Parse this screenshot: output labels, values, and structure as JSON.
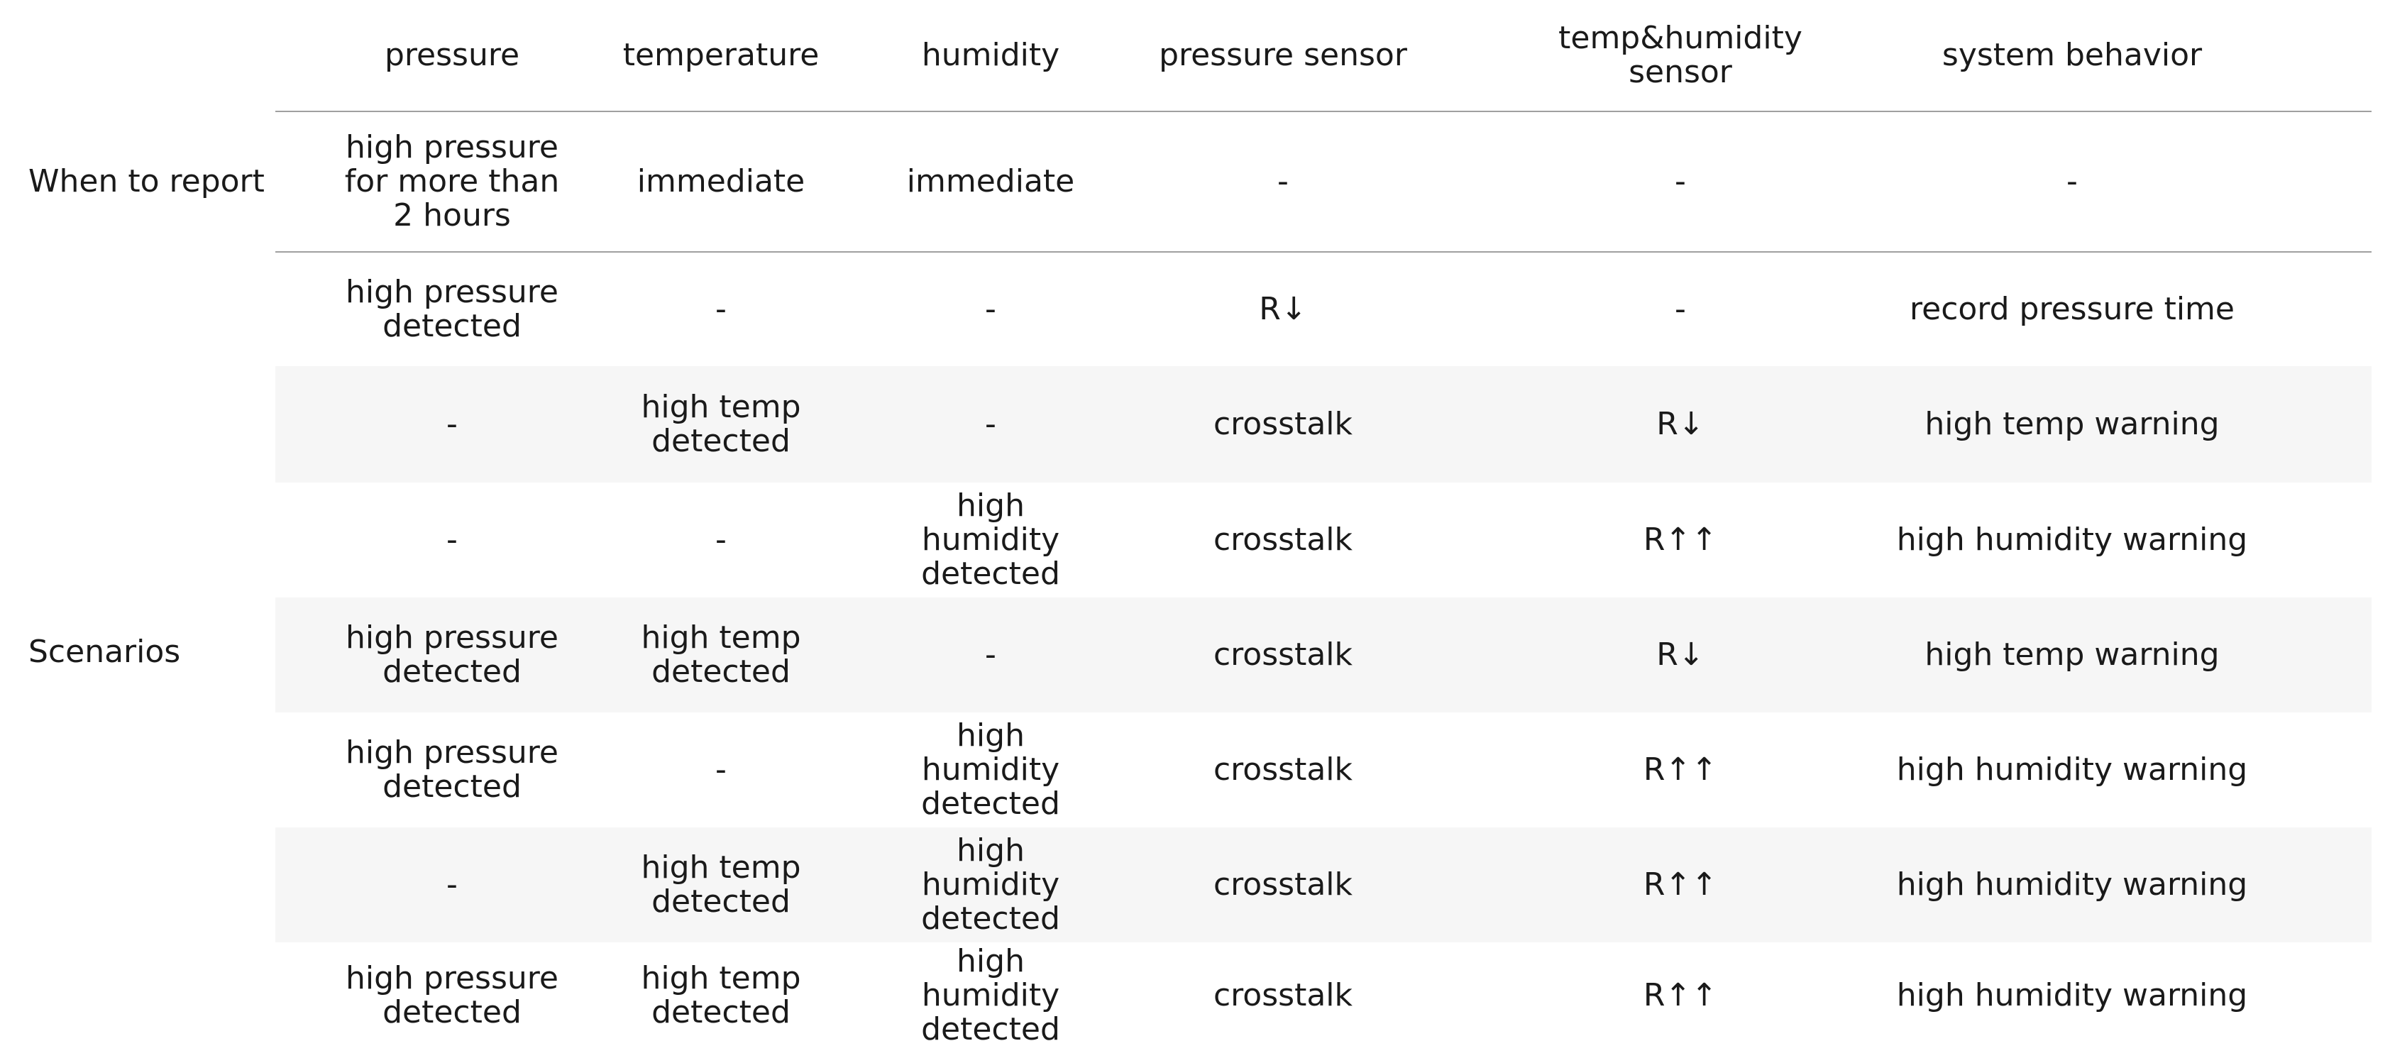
{
  "row_groups": {
    "report_label": "When to report",
    "scenarios_label": "Scenarios"
  },
  "headers": [
    "pressure",
    "temperature",
    "humidity",
    "pressure sensor",
    "temp&humidity sensor",
    "system behavior"
  ],
  "report_row": [
    "high pressure for more than 2 hours",
    "immediate",
    "immediate",
    "-",
    "-",
    "-"
  ],
  "scenarios": [
    [
      "high pressure detected",
      "-",
      "-",
      "R↓",
      "-",
      "record pressure time"
    ],
    [
      "-",
      "high temp detected",
      "-",
      "crosstalk",
      "R↓",
      "high temp warning"
    ],
    [
      "-",
      "-",
      "high humidity detected",
      "crosstalk",
      "R↑↑",
      "high humidity warning"
    ],
    [
      "high pressure detected",
      "high temp detected",
      "-",
      "crosstalk",
      "R↓",
      "high temp warning"
    ],
    [
      "high pressure detected",
      "-",
      "high humidity detected",
      "crosstalk",
      "R↑↑",
      "high humidity warning"
    ],
    [
      "-",
      "high temp detected",
      "high humidity detected",
      "crosstalk",
      "R↑↑",
      "high humidity warning"
    ],
    [
      "high pressure detected",
      "high temp detected",
      "high humidity detected",
      "crosstalk",
      "R↑↑",
      "high humidity warning"
    ]
  ]
}
